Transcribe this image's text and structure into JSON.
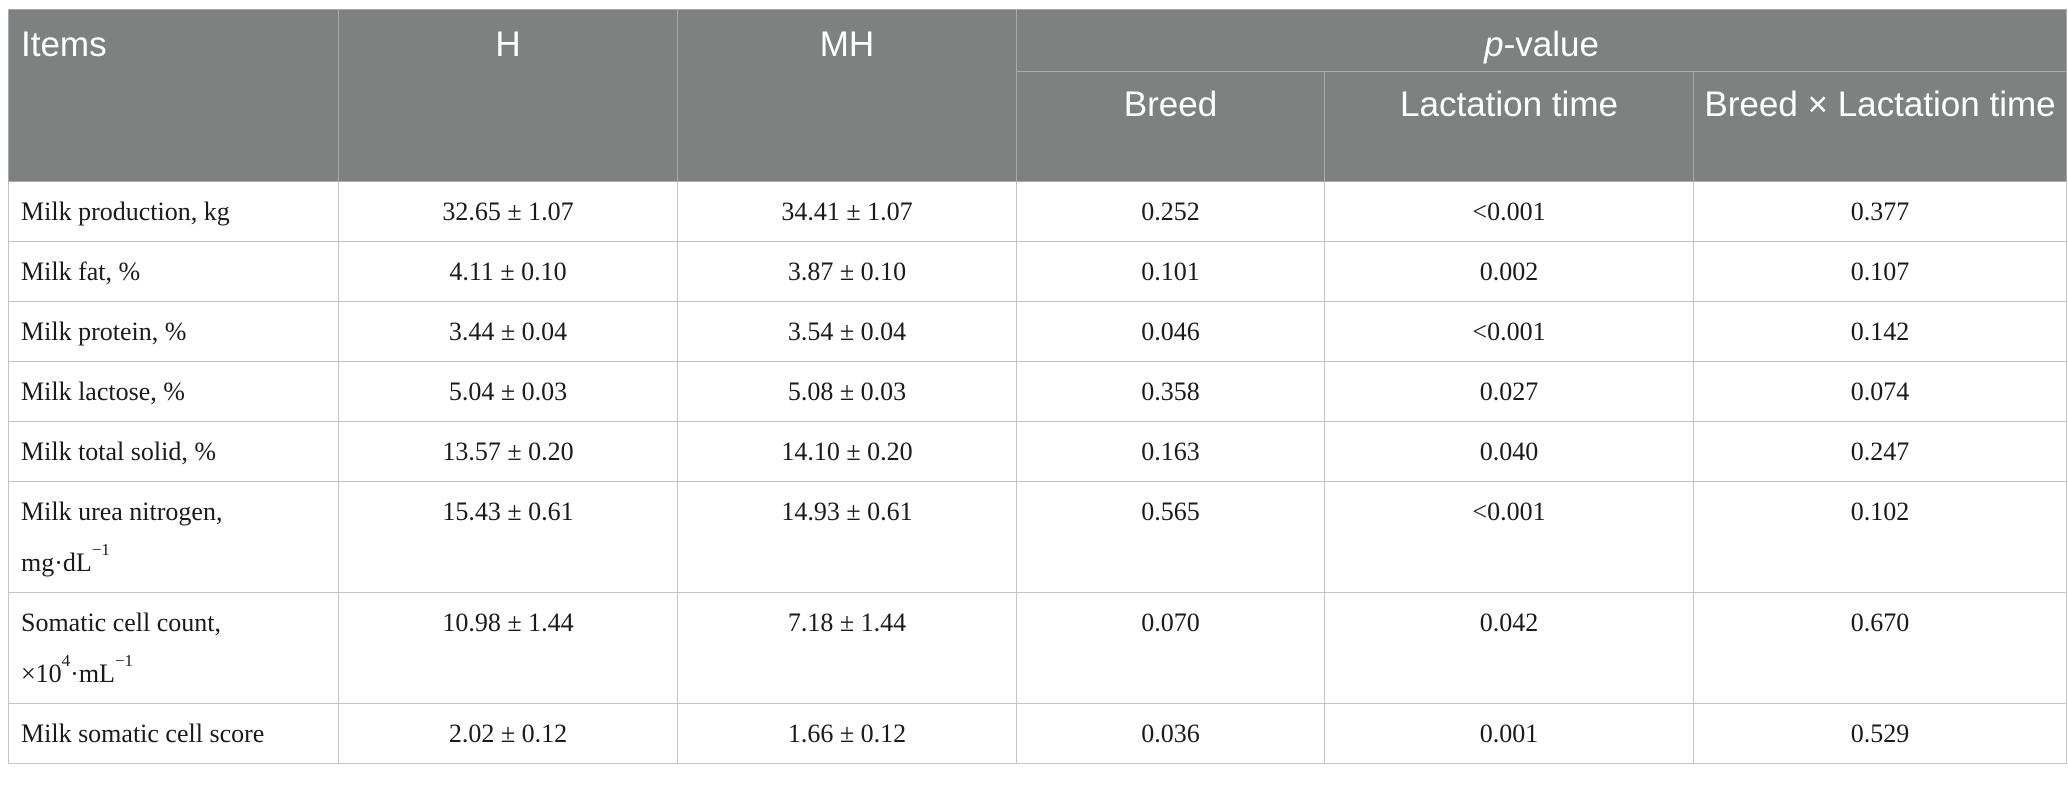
{
  "table": {
    "headers": {
      "items": "Items",
      "h": "H",
      "mh": "MH",
      "pvalue_italic": "p",
      "pvalue_rest": "-value",
      "breed": "Breed",
      "lactation_time": "Lactation time",
      "interaction": "Breed × Lactation time"
    },
    "rows": [
      {
        "item": "Milk production, kg",
        "h": "32.65 ± 1.07",
        "mh": "34.41 ± 1.07",
        "breed": "0.252",
        "lactation": "<0.001",
        "interaction": "0.377"
      },
      {
        "item": "Milk fat, %",
        "h": "4.11 ± 0.10",
        "mh": "3.87 ± 0.10",
        "breed": "0.101",
        "lactation": "0.002",
        "interaction": "0.107"
      },
      {
        "item": "Milk protein, %",
        "h": "3.44 ± 0.04",
        "mh": "3.54 ± 0.04",
        "breed": "0.046",
        "lactation": "<0.001",
        "interaction": "0.142"
      },
      {
        "item": "Milk lactose, %",
        "h": "5.04 ± 0.03",
        "mh": "5.08 ± 0.03",
        "breed": "0.358",
        "lactation": "0.027",
        "interaction": "0.074"
      },
      {
        "item": "Milk total solid, %",
        "h": "13.57 ± 0.20",
        "mh": "14.10 ± 0.20",
        "breed": "0.163",
        "lactation": "0.040",
        "interaction": "0.247"
      },
      {
        "item_line1": "Milk urea nitrogen,",
        "item_line2_base": "mg·dL",
        "item_line2_sup": "−1",
        "h": "15.43 ± 0.61",
        "mh": "14.93 ± 0.61",
        "breed": "0.565",
        "lactation": "<0.001",
        "interaction": "0.102"
      },
      {
        "item_line1": "Somatic cell count,",
        "item_line2_pre": "×10",
        "item_line2_sup1": "4",
        "item_line2_mid": "·mL",
        "item_line2_sup2": "−1",
        "h": "10.98 ± 1.44",
        "mh": "7.18 ± 1.44",
        "breed": "0.070",
        "lactation": "0.042",
        "interaction": "0.670"
      },
      {
        "item": "Milk somatic cell score",
        "h": "2.02 ± 0.12",
        "mh": "1.66 ± 0.12",
        "breed": "0.036",
        "lactation": "0.001",
        "interaction": "0.529"
      }
    ]
  }
}
